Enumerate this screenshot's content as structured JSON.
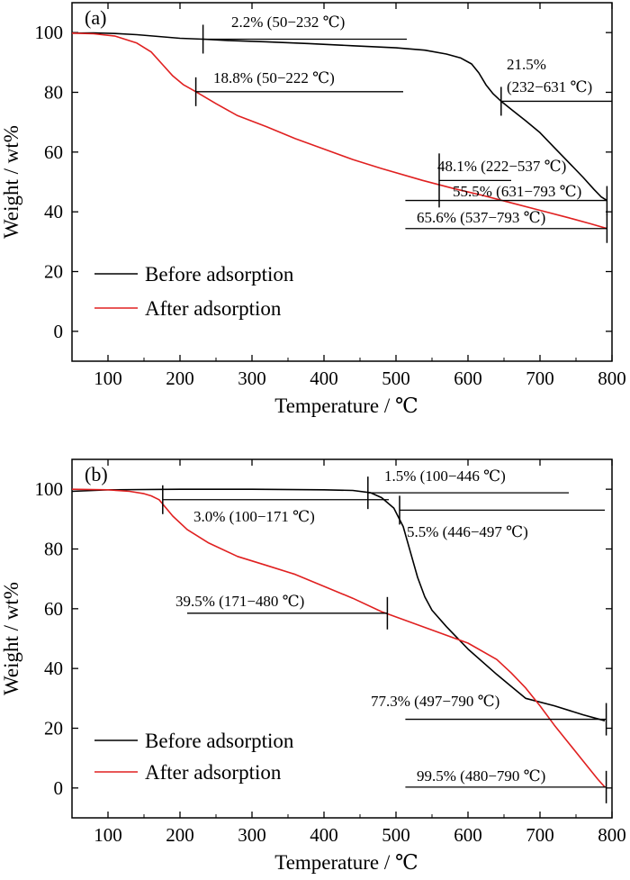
{
  "chart_data": [
    {
      "type": "line",
      "panel_label": "(a)",
      "xlabel": "Temperature / ℃",
      "ylabel": "Weight / wt%",
      "xlim": [
        50,
        800
      ],
      "ylim": [
        -10,
        110
      ],
      "xticks": [
        100,
        200,
        300,
        400,
        500,
        600,
        700,
        800
      ],
      "yticks": [
        0,
        20,
        40,
        60,
        80,
        100
      ],
      "grid": false,
      "legend_position": "lower-left",
      "series": [
        {
          "name": "Before adsorption",
          "color": "#000000",
          "x": [
            50,
            80,
            110,
            140,
            170,
            200,
            232,
            270,
            320,
            380,
            440,
            500,
            540,
            570,
            590,
            605,
            615,
            625,
            635,
            646,
            660,
            680,
            700,
            720,
            740,
            760,
            775,
            785,
            793
          ],
          "y": [
            99.8,
            99.9,
            99.7,
            99.3,
            98.7,
            98.1,
            97.8,
            97.3,
            96.9,
            96.3,
            95.6,
            94.9,
            94.1,
            92.8,
            91.5,
            89.5,
            86.5,
            82.5,
            79.5,
            77.0,
            74.3,
            70.5,
            66.5,
            61.5,
            56.5,
            51.5,
            47.5,
            45.0,
            43.8
          ]
        },
        {
          "name": "After adsorption",
          "color": "#e02020",
          "x": [
            50,
            80,
            110,
            140,
            160,
            175,
            190,
            205,
            222,
            250,
            280,
            320,
            360,
            400,
            440,
            480,
            537,
            580,
            620,
            660,
            700,
            740,
            770,
            793
          ],
          "y": [
            99.8,
            99.6,
            98.8,
            96.5,
            93.5,
            89.5,
            85.5,
            82.5,
            80.2,
            76.2,
            72.2,
            68.5,
            64.5,
            61.0,
            57.5,
            54.5,
            50.5,
            47.8,
            45.5,
            43.0,
            40.5,
            38.0,
            36.0,
            34.4
          ]
        }
      ],
      "annotations": [
        {
          "text": "2.2% (50−232 ℃)",
          "x": 232,
          "y": 97.8,
          "line_to": 515
        },
        {
          "text": "18.8% (50−222 ℃)",
          "x": 222,
          "y": 80.2,
          "line_to": 510
        },
        {
          "text": "21.5%",
          "x": 646,
          "y": 77.0,
          "line_to": 800
        },
        {
          "text": "(232−631 ℃)"
        },
        {
          "text": "48.1% (222−537 ℃)",
          "x": 560,
          "y": 50.5,
          "line_to": 660
        },
        {
          "text": "55.5% (631−793 ℃)",
          "x": 793,
          "y": 43.8,
          "line_from": 513
        },
        {
          "text": "65.6% (537−793 ℃)",
          "x": 793,
          "y": 34.4,
          "line_from": 513
        }
      ]
    },
    {
      "type": "line",
      "panel_label": "(b)",
      "xlabel": "Temperature / ℃",
      "ylabel": "Weight / wt%",
      "xlim": [
        50,
        800
      ],
      "ylim": [
        -10,
        110
      ],
      "xticks": [
        100,
        200,
        300,
        400,
        500,
        600,
        700,
        800
      ],
      "yticks": [
        0,
        20,
        40,
        60,
        80,
        100
      ],
      "grid": false,
      "legend_position": "lower-left",
      "series": [
        {
          "name": "Before adsorption",
          "color": "#000000",
          "x": [
            50,
            100,
            200,
            300,
            400,
            440,
            465,
            480,
            497,
            510,
            520,
            530,
            540,
            550,
            570,
            600,
            640,
            680,
            720,
            760,
            790
          ],
          "y": [
            99.3,
            99.8,
            100.0,
            100.0,
            99.8,
            99.6,
            98.8,
            97.2,
            93.7,
            87.5,
            79.0,
            70.5,
            64.0,
            59.5,
            54.0,
            46.5,
            38.0,
            30.0,
            27.5,
            24.5,
            22.5
          ]
        },
        {
          "name": "After adsorption",
          "color": "#e02020",
          "x": [
            50,
            100,
            130,
            150,
            160,
            171,
            190,
            210,
            240,
            280,
            320,
            360,
            400,
            440,
            480,
            520,
            560,
            600,
            640,
            660,
            680,
            700,
            720,
            740,
            760,
            780,
            790
          ],
          "y": [
            100.0,
            99.8,
            99.3,
            98.5,
            97.8,
            96.5,
            91.0,
            86.5,
            82.0,
            77.5,
            74.5,
            71.5,
            67.5,
            63.5,
            59.0,
            55.5,
            52.0,
            48.5,
            43.0,
            38.5,
            33.5,
            27.5,
            21.0,
            15.0,
            9.0,
            3.0,
            0.3
          ]
        }
      ],
      "annotations": [
        {
          "text": "1.5% (100−446 ℃)",
          "x": 461,
          "y": 98.8,
          "line_to": 740
        },
        {
          "text": "3.0% (100−171 ℃)",
          "x": 176,
          "y": 96.5,
          "line_to": 490
        },
        {
          "text": "5.5% (446−497 ℃)",
          "x": 505,
          "y": 93.0,
          "line_to": 790
        },
        {
          "text": "39.5% (171−480 ℃)",
          "x": 488,
          "y": 58.5,
          "line_from": 210
        },
        {
          "text": "77.3% (497−790 ℃)",
          "x": 792,
          "y": 23.0,
          "line_from": 513
        },
        {
          "text": "99.5% (480−790 ℃)",
          "x": 792,
          "y": 0.3,
          "line_from": 513
        }
      ]
    }
  ]
}
